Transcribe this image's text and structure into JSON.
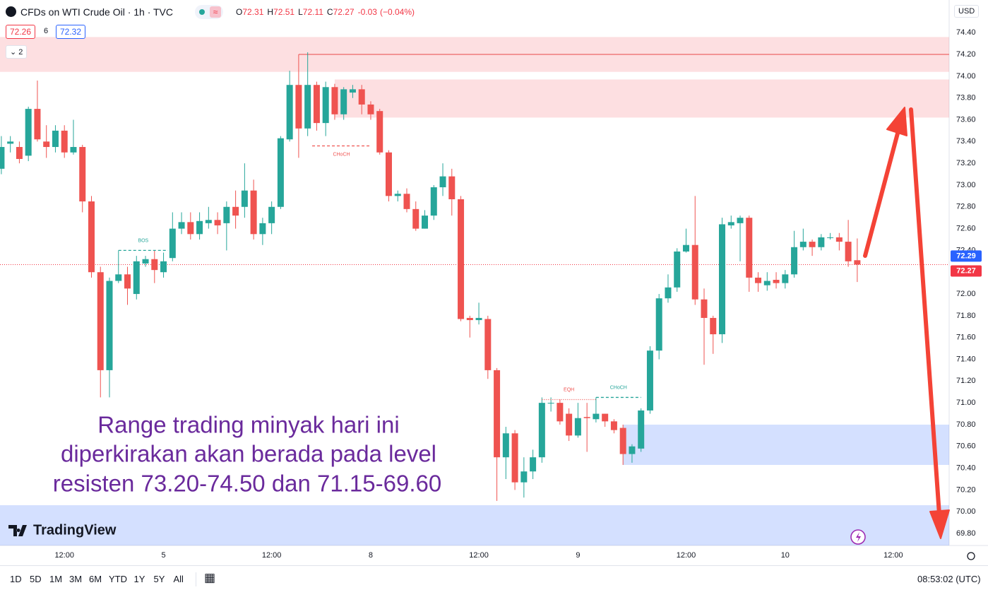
{
  "header": {
    "title": "CFDs on WTI Crude Oil · 1h · TVC",
    "ohlc": [
      {
        "key": "O",
        "value": 72.31
      },
      {
        "key": "H",
        "value": 72.51
      },
      {
        "key": "L",
        "value": 72.11
      },
      {
        "key": "C",
        "value": 72.27
      }
    ],
    "change": -0.03,
    "change_pct": {
      "value": -0.04,
      "label": "(−0.04%)"
    },
    "bid": 72.26,
    "spread": 6,
    "ask": 72.32,
    "indicator_count": 2,
    "currency": "USD"
  },
  "logo": "TradingView",
  "note": [
    "Range trading minyak hari ini",
    "diperkirakan akan berada pada level",
    "resisten 73.20-74.50 dan 71.15-69.60"
  ],
  "toolbar": {
    "periods": [
      "1D",
      "5D",
      "1M",
      "3M",
      "6M",
      "YTD",
      "1Y",
      "5Y",
      "All"
    ],
    "clock": "08:53:02 (UTC)"
  },
  "chart_data": {
    "type": "candlestick",
    "up_color": "#26a69a",
    "down_color": "#ef5350",
    "open": [
      73.15,
      73.38,
      73.35,
      73.27,
      73.7,
      73.4,
      73.35,
      73.5,
      73.3,
      73.35,
      72.85,
      72.2,
      71.3,
      72.12,
      72.18,
      72.0,
      72.28,
      72.32,
      72.2,
      72.33,
      72.6,
      72.66,
      72.55,
      72.65,
      72.68,
      72.65,
      72.8,
      72.8,
      72.95,
      72.55,
      72.65,
      72.8,
      73.42,
      73.92,
      73.52,
      73.92,
      73.57,
      73.9,
      73.65,
      73.85,
      73.88,
      73.74,
      73.68,
      73.3,
      72.9,
      72.92,
      72.78,
      72.6,
      72.72,
      72.98,
      73.08,
      72.87,
      71.78,
      71.76,
      71.77,
      71.3,
      70.5,
      70.72,
      70.27,
      70.37,
      70.5,
      71.0,
      71.0,
      70.9,
      70.7,
      70.87,
      70.85,
      70.9,
      70.83,
      70.77,
      70.53,
      70.58,
      70.93,
      71.48,
      71.96,
      72.06,
      72.39,
      72.45,
      71.95,
      71.78,
      71.63,
      72.63,
      72.65,
      72.7,
      72.15,
      72.08,
      72.13,
      72.1,
      72.18,
      72.43,
      72.48,
      72.43,
      72.52,
      72.52,
      72.48,
      72.31
    ],
    "high": [
      73.45,
      73.45,
      73.4,
      73.72,
      73.96,
      73.55,
      73.55,
      73.55,
      73.6,
      73.37,
      72.9,
      72.25,
      72.15,
      72.4,
      72.25,
      72.35,
      72.35,
      72.4,
      72.38,
      72.75,
      72.75,
      72.75,
      72.75,
      72.8,
      72.75,
      72.85,
      72.95,
      73.2,
      73.05,
      72.7,
      72.85,
      73.45,
      74.05,
      74.2,
      74.22,
      73.95,
      73.95,
      73.93,
      73.9,
      73.92,
      73.92,
      73.77,
      73.7,
      73.32,
      72.95,
      72.97,
      72.85,
      72.77,
      73.0,
      73.2,
      73.15,
      72.9,
      71.8,
      71.92,
      71.8,
      71.32,
      70.78,
      70.75,
      70.5,
      70.57,
      71.05,
      71.05,
      71.03,
      70.95,
      71.0,
      71.0,
      71.05,
      70.9,
      70.85,
      70.8,
      70.62,
      70.95,
      71.52,
      72.0,
      72.18,
      72.42,
      72.6,
      72.9,
      72.05,
      71.8,
      72.7,
      72.72,
      72.72,
      72.72,
      72.2,
      72.2,
      72.2,
      72.22,
      72.58,
      72.6,
      72.5,
      72.55,
      72.56,
      72.56,
      72.68,
      72.51
    ],
    "low": [
      73.1,
      73.3,
      73.2,
      73.22,
      73.4,
      73.25,
      73.3,
      73.25,
      73.28,
      72.75,
      72.15,
      71.05,
      71.05,
      72.1,
      71.9,
      71.95,
      72.25,
      72.1,
      72.15,
      72.3,
      72.55,
      72.5,
      72.5,
      72.6,
      72.55,
      72.4,
      72.6,
      72.7,
      72.5,
      72.45,
      72.55,
      72.78,
      73.4,
      73.25,
      73.45,
      73.5,
      73.45,
      73.6,
      73.6,
      73.8,
      73.65,
      73.6,
      73.28,
      72.85,
      72.85,
      72.75,
      72.58,
      72.6,
      72.68,
      72.9,
      72.72,
      71.75,
      71.6,
      71.72,
      71.22,
      70.1,
      70.3,
      70.2,
      70.13,
      70.3,
      70.45,
      70.92,
      70.8,
      70.65,
      70.68,
      70.55,
      70.82,
      70.78,
      70.72,
      70.43,
      70.45,
      70.55,
      70.9,
      71.4,
      71.92,
      72.02,
      72.38,
      71.9,
      71.35,
      71.45,
      71.55,
      72.6,
      72.3,
      72.02,
      72.02,
      72.03,
      72.05,
      72.05,
      72.15,
      72.4,
      72.35,
      72.4,
      72.5,
      72.4,
      72.25,
      72.11
    ],
    "close": [
      73.35,
      73.4,
      73.24,
      73.7,
      73.42,
      73.35,
      73.5,
      73.3,
      73.35,
      72.85,
      72.2,
      71.3,
      72.12,
      72.18,
      72.05,
      72.3,
      72.32,
      72.22,
      72.3,
      72.6,
      72.66,
      72.55,
      72.67,
      72.68,
      72.63,
      72.8,
      72.72,
      72.95,
      72.55,
      72.65,
      72.8,
      73.43,
      73.92,
      73.52,
      73.92,
      73.57,
      73.9,
      73.65,
      73.88,
      73.88,
      73.74,
      73.65,
      73.3,
      72.9,
      72.92,
      72.78,
      72.6,
      72.72,
      72.98,
      73.08,
      72.87,
      71.77,
      71.76,
      71.78,
      71.3,
      70.5,
      70.72,
      70.27,
      70.37,
      70.5,
      71.0,
      71.0,
      70.83,
      70.7,
      70.86,
      70.86,
      70.9,
      70.83,
      70.75,
      70.53,
      70.6,
      70.93,
      71.48,
      71.96,
      72.06,
      72.39,
      72.45,
      71.95,
      71.78,
      71.63,
      72.64,
      72.66,
      72.7,
      72.15,
      72.1,
      72.12,
      72.1,
      72.18,
      72.43,
      72.48,
      72.43,
      72.52,
      72.52,
      72.48,
      72.3,
      72.27
    ],
    "xlim": [
      -0.15,
      105.2
    ],
    "ylim": [
      69.69,
      74.7
    ],
    "xticks": [
      {
        "value": 7,
        "label": "12:00"
      },
      {
        "value": 18,
        "label": "5"
      },
      {
        "value": 30,
        "label": "12:00"
      },
      {
        "value": 41,
        "label": "8"
      },
      {
        "value": 53,
        "label": "12:00"
      },
      {
        "value": 64,
        "label": "9"
      },
      {
        "value": 76,
        "label": "12:00"
      },
      {
        "value": 87,
        "label": "10"
      },
      {
        "value": 99,
        "label": "12:00"
      }
    ],
    "yticks": [
      {
        "value": 74.4,
        "label": "74.40"
      },
      {
        "value": 74.2,
        "label": "74.20"
      },
      {
        "value": 74.0,
        "label": "74.00"
      },
      {
        "value": 73.8,
        "label": "73.80"
      },
      {
        "value": 73.6,
        "label": "73.60"
      },
      {
        "value": 73.4,
        "label": "73.40"
      },
      {
        "value": 73.2,
        "label": "73.20"
      },
      {
        "value": 73.0,
        "label": "73.00"
      },
      {
        "value": 72.8,
        "label": "72.80"
      },
      {
        "value": 72.6,
        "label": "72.60"
      },
      {
        "value": 72.4,
        "label": "72.40"
      },
      {
        "value": 72.2,
        "label": "72.20"
      },
      {
        "value": 72.0,
        "label": "72.00"
      },
      {
        "value": 71.8,
        "label": "71.80"
      },
      {
        "value": 71.6,
        "label": "71.60"
      },
      {
        "value": 71.4,
        "label": "71.40"
      },
      {
        "value": 71.2,
        "label": "71.20"
      },
      {
        "value": 71.0,
        "label": "71.00"
      },
      {
        "value": 70.8,
        "label": "70.80"
      },
      {
        "value": 70.6,
        "label": "70.60"
      },
      {
        "value": 70.4,
        "label": "70.40"
      },
      {
        "value": 70.2,
        "label": "70.20"
      },
      {
        "value": 70.0,
        "label": "70.00"
      },
      {
        "value": 69.8,
        "label": "69.80"
      }
    ],
    "grid": false,
    "zones": [
      {
        "top": 74.36,
        "bottom": 74.04,
        "color": "rgba(242,54,69,0.16)"
      },
      {
        "top": 73.97,
        "bottom": 73.62,
        "start": 37,
        "color": "rgba(242,54,69,0.16)"
      },
      {
        "top": 70.8,
        "bottom": 70.43,
        "start": 69,
        "color": "rgba(41,98,255,0.2)"
      },
      {
        "top": 70.06,
        "bottom": 69.69,
        "color": "rgba(41,98,255,0.2)"
      }
    ],
    "hline": {
      "level": 74.2,
      "start": 33,
      "color": "#f07a7a"
    },
    "levels": [
      {
        "label": "BOS",
        "level": 72.4,
        "start": 13,
        "end": 18.5,
        "color": "#26a69a",
        "dash": "4,3"
      },
      {
        "label": "CHoCH",
        "level": 73.36,
        "start": 34.5,
        "end": 41,
        "color": "#ef5350",
        "dash": "4,3",
        "below": true
      },
      {
        "label": "EQH",
        "level": 71.03,
        "start": 60,
        "end": 66,
        "color": "#ef5350",
        "dash": "1,2"
      },
      {
        "label": "CHoCH",
        "level": 71.05,
        "start": 66,
        "end": 71,
        "color": "#26a69a",
        "dash": "4,3"
      }
    ],
    "price_tags": [
      {
        "value": 72.29,
        "color": "#2962ff"
      },
      {
        "value": 72.27,
        "color": "#f23645"
      }
    ]
  }
}
